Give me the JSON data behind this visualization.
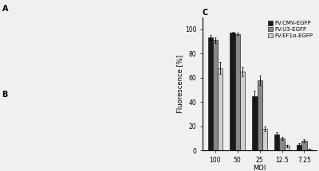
{
  "title": "C",
  "xlabel": "MOI",
  "ylabel": "Fluorescence [%]",
  "categories": [
    "100",
    "50",
    "25",
    "12.5",
    "7.25"
  ],
  "series": {
    "FV.CMV-EGFP": [
      93,
      97,
      45,
      13,
      5
    ],
    "FV.U3-EGFP": [
      91,
      96,
      58,
      10,
      8
    ],
    "FV.EF1α-EGFP": [
      68,
      65,
      18,
      4,
      1
    ]
  },
  "errors": {
    "FV.CMV-EGFP": [
      2,
      1,
      4,
      2,
      1
    ],
    "FV.U3-EGFP": [
      2,
      1,
      4,
      1.5,
      1
    ],
    "FV.EF1α-EGFP": [
      5,
      4,
      2,
      1,
      0.5
    ]
  },
  "colors": {
    "FV.CMV-EGFP": "#1a1a1a",
    "FV.U3-EGFP": "#888888",
    "FV.EF1α-EGFP": "#d0d0d0"
  },
  "ylim": [
    0,
    110
  ],
  "yticks": [
    0,
    20,
    40,
    60,
    80,
    100
  ],
  "bar_width": 0.22,
  "legend_fontsize": 5.0,
  "axis_fontsize": 6.0,
  "tick_fontsize": 5.5,
  "title_fontsize": 7,
  "background_color": "#f0f0f0",
  "chart_bg": "#f0f0f0",
  "left_panel_color": "#f0f0f0",
  "fig_width": 4.0,
  "fig_height": 2.15
}
